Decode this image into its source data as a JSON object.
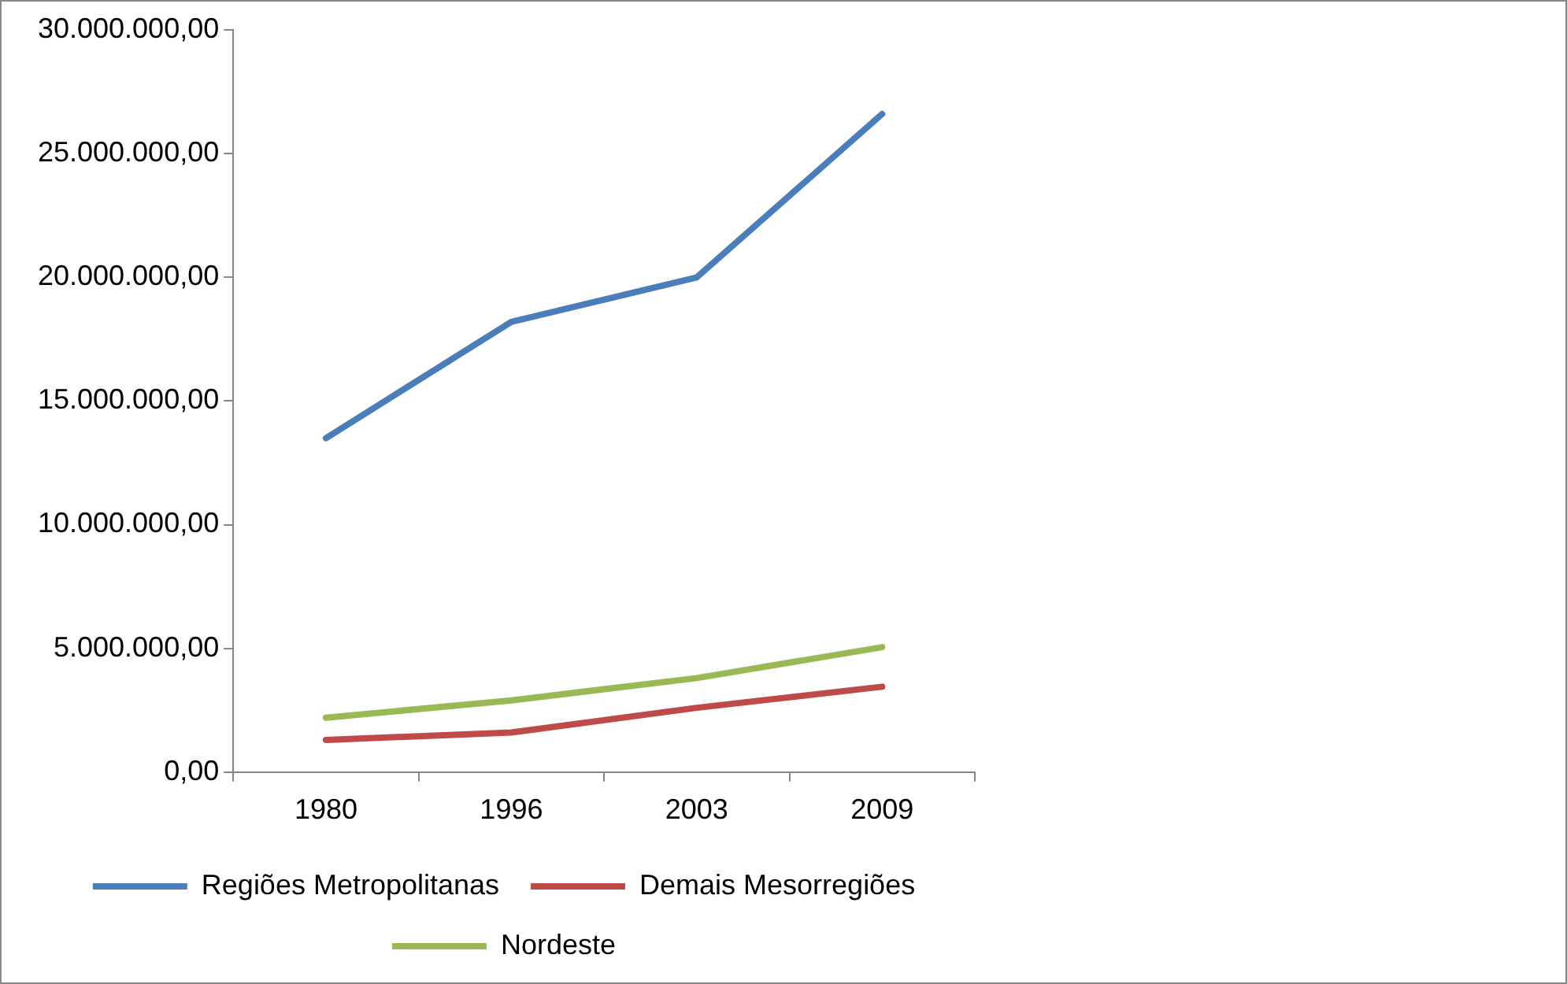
{
  "chart_data": {
    "type": "line",
    "categories": [
      "1980",
      "1996",
      "2003",
      "2009"
    ],
    "series": [
      {
        "name": "Regiões Metropolitanas",
        "color": "#4a7ebb",
        "values": [
          13500000,
          18200000,
          20000000,
          26600000
        ]
      },
      {
        "name": "Demais Mesorregiões",
        "color": "#be4b48",
        "values": [
          1300000,
          1600000,
          2600000,
          3450000
        ]
      },
      {
        "name": "Nordeste",
        "color": "#98b954",
        "values": [
          2200000,
          2900000,
          3800000,
          5050000
        ]
      }
    ],
    "ylim": [
      0,
      30000000
    ],
    "yticks": [
      {
        "value": 0,
        "label": "0,00"
      },
      {
        "value": 5000000,
        "label": "5.000.000,00"
      },
      {
        "value": 10000000,
        "label": "10.000.000,00"
      },
      {
        "value": 15000000,
        "label": "15.000.000,00"
      },
      {
        "value": 20000000,
        "label": "20.000.000,00"
      },
      {
        "value": 25000000,
        "label": "25.000.000,00"
      },
      {
        "value": 30000000,
        "label": "30.000.000,00"
      }
    ],
    "grid": false,
    "legend": "bottom",
    "marker": "none",
    "line_style": "solid"
  }
}
